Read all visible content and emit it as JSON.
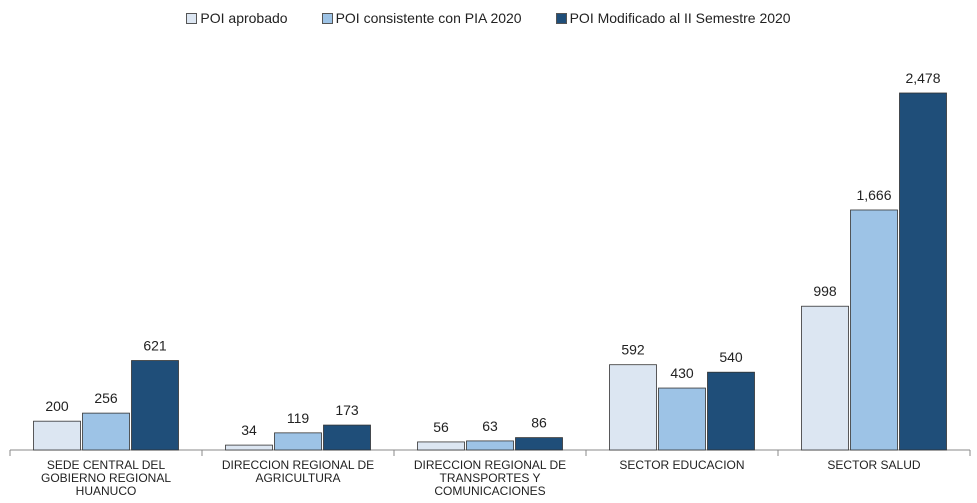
{
  "chart_data": {
    "type": "bar",
    "categories": [
      "SEDE CENTRAL DEL GOBIERNO REGIONAL HUANUCO",
      "DIRECCION REGIONAL DE AGRICULTURA",
      "DIRECCION REGIONAL DE TRANSPORTES Y COMUNICACIONES",
      "SECTOR EDUCACION",
      "SECTOR SALUD"
    ],
    "series": [
      {
        "name": "POI aprobado",
        "color": "#dce6f2",
        "values": [
          200,
          34,
          56,
          592,
          998
        ]
      },
      {
        "name": "POI consistente con PIA 2020",
        "color": "#9dc3e6",
        "values": [
          256,
          119,
          63,
          430,
          1666
        ],
        "value_labels": [
          "256",
          "119",
          "63",
          "430",
          "1,666"
        ]
      },
      {
        "name": "POI Modificado al II Semestre 2020",
        "color": "#1f4e79",
        "values": [
          621,
          173,
          86,
          540,
          2478
        ],
        "value_labels": [
          "621",
          "173",
          "86",
          "540",
          "2,478"
        ]
      }
    ],
    "legend": "top"
  }
}
